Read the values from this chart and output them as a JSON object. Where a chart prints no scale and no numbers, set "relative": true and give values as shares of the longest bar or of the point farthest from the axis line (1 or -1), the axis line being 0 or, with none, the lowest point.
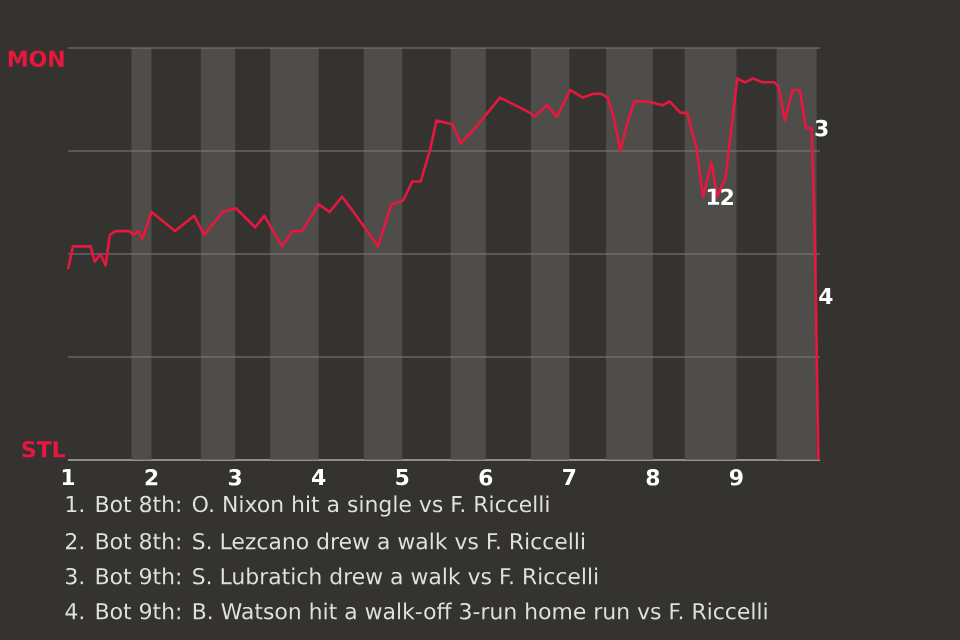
{
  "chart_data": {
    "type": "line",
    "relative": true,
    "xlim": [
      1,
      10
    ],
    "xticks": [
      1,
      2,
      3,
      4,
      5,
      6,
      7,
      8,
      9
    ],
    "grid": "y",
    "bands": [
      {
        "axis": "x",
        "from": 1.76,
        "to": 2,
        "color": "#4f4d4a"
      },
      {
        "axis": "x",
        "from": 2.59,
        "to": 3,
        "color": "#4f4d4a"
      },
      {
        "axis": "x",
        "from": 3.42,
        "to": 4,
        "color": "#4f4d4a"
      },
      {
        "axis": "x",
        "from": 4.54,
        "to": 5,
        "color": "#4f4d4a"
      },
      {
        "axis": "x",
        "from": 5.58,
        "to": 6,
        "color": "#4f4d4a"
      },
      {
        "axis": "x",
        "from": 6.54,
        "to": 7,
        "color": "#4f4d4a"
      },
      {
        "axis": "x",
        "from": 7.44,
        "to": 8,
        "color": "#4f4d4a"
      },
      {
        "axis": "x",
        "from": 8.38,
        "to": 9,
        "color": "#4f4d4a"
      },
      {
        "axis": "x",
        "from": 9.48,
        "to": 9.96,
        "color": "#4f4d4a"
      }
    ],
    "series": [
      {
        "color": "#e8173f",
        "x": [
          1,
          1.06,
          1.27,
          1.32,
          1.39,
          1.45,
          1.5,
          1.57,
          1.74,
          1.78,
          1.84,
          1.89,
          2,
          2.28,
          2.51,
          2.63,
          2.85,
          3.01,
          3.24,
          3.35,
          3.56,
          3.69,
          3.8,
          4,
          4.13,
          4.28,
          4.45,
          4.71,
          4.87,
          5.01,
          5.12,
          5.22,
          5.33,
          5.41,
          5.6,
          5.7,
          5.87,
          6.17,
          6.35,
          6.53,
          6.58,
          6.73,
          6.85,
          7.01,
          7.16,
          7.29,
          7.38,
          7.46,
          7.54,
          7.61,
          7.69,
          7.78,
          7.93,
          8.12,
          8.2,
          8.33,
          8.41,
          8.52,
          8.6,
          8.7,
          8.77,
          8.87,
          9.01,
          9.1,
          9.2,
          9.31,
          9.45,
          9.5,
          9.58,
          9.67,
          9.76,
          9.83,
          9.9,
          9.93,
          9.95,
          9.98
        ],
        "values": [
          0.5,
          0.56,
          0.56,
          0.52,
          0.54,
          0.51,
          0.59,
          0.6,
          0.6,
          0.59,
          0.6,
          0.58,
          0.65,
          0.6,
          0.64,
          0.59,
          0.65,
          0.66,
          0.61,
          0.64,
          0.56,
          0.6,
          0.6,
          0.67,
          0.65,
          0.69,
          0.64,
          0.56,
          0.67,
          0.68,
          0.73,
          0.73,
          0.81,
          0.89,
          0.88,
          0.83,
          0.87,
          0.95,
          0.93,
          0.91,
          0.9,
          0.93,
          0.9,
          0.97,
          0.95,
          0.96,
          0.96,
          0.95,
          0.89,
          0.81,
          0.88,
          0.94,
          0.94,
          0.93,
          0.94,
          0.91,
          0.91,
          0.82,
          0.69,
          0.78,
          0.69,
          0.74,
          1,
          0.99,
          1,
          0.99,
          0.99,
          0.98,
          0.89,
          0.97,
          0.97,
          0.87,
          0.87,
          0.65,
          0.43,
          0
        ]
      }
    ],
    "annotations": [
      "MON",
      "STL",
      {
        "text": "1",
        "x": 8.6,
        "y": 0.69
      },
      {
        "text": "2",
        "x": 8.77,
        "y": 0.69
      },
      {
        "text": "3",
        "x": 9.9,
        "y": 0.87
      },
      {
        "text": "4",
        "x": 9.95,
        "y": 0.43
      },
      "1. Bot 8th: O. Nixon hit a single vs F. Riccelli",
      "2. Bot 8th: S. Lezcano drew a walk vs F. Riccelli",
      "3. Bot 9th: S. Lubratich drew a walk vs F. Riccelli",
      "4. Bot 9th: B. Watson hit a walk-off 3-run home run vs F. Riccelli"
    ]
  }
}
